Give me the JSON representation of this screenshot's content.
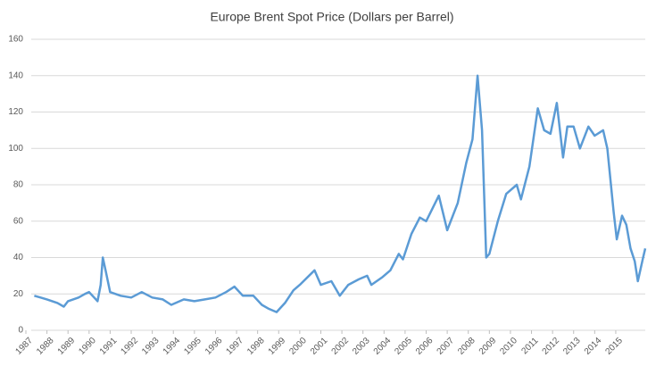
{
  "chart_data": {
    "type": "line",
    "title": "Europe Brent Spot Price (Dollars per Barrel)",
    "x": [
      1987.4,
      1987.7,
      1988.0,
      1988.5,
      1988.8,
      1989.0,
      1989.5,
      1989.8,
      1990.0,
      1990.4,
      1990.55,
      1990.65,
      1990.8,
      1991.0,
      1991.5,
      1992.0,
      1992.5,
      1993.0,
      1993.5,
      1993.9,
      1994.5,
      1995.0,
      1995.5,
      1996.0,
      1996.5,
      1996.9,
      1997.3,
      1997.8,
      1998.2,
      1998.5,
      1998.9,
      1999.3,
      1999.7,
      2000.0,
      2000.7,
      2001.0,
      2001.5,
      2001.9,
      2002.3,
      2002.8,
      2003.2,
      2003.4,
      2003.9,
      2004.3,
      2004.7,
      2004.9,
      2005.3,
      2005.7,
      2006.0,
      2006.6,
      2007.0,
      2007.5,
      2007.9,
      2008.2,
      2008.44,
      2008.65,
      2008.85,
      2009.0,
      2009.4,
      2009.8,
      2010.3,
      2010.5,
      2010.9,
      2011.3,
      2011.6,
      2011.9,
      2012.2,
      2012.5,
      2012.7,
      2013.0,
      2013.3,
      2013.7,
      2014.0,
      2014.4,
      2014.6,
      2014.9,
      2015.05,
      2015.3,
      2015.5,
      2015.7,
      2015.9,
      2016.05,
      2016.3,
      2016.4
    ],
    "values": [
      19,
      18,
      17,
      15,
      13,
      16,
      18,
      20,
      21,
      16,
      25,
      40,
      32,
      21,
      19,
      18,
      21,
      18,
      17,
      14,
      17,
      16,
      17,
      18,
      21,
      24,
      19,
      19,
      14,
      12,
      10,
      15,
      22,
      25,
      33,
      25,
      27,
      19,
      25,
      28,
      30,
      25,
      29,
      33,
      42,
      39,
      53,
      62,
      60,
      74,
      55,
      70,
      92,
      105,
      140,
      110,
      40,
      42,
      60,
      75,
      80,
      72,
      90,
      122,
      110,
      108,
      125,
      95,
      112,
      112,
      100,
      112,
      107,
      110,
      100,
      65,
      50,
      63,
      58,
      45,
      38,
      27,
      40,
      45
    ],
    "color": "#5b9bd5",
    "xlim": [
      1987,
      2016.4
    ],
    "xticks": [
      1987,
      1988,
      1989,
      1990,
      1991,
      1992,
      1993,
      1994,
      1995,
      1996,
      1997,
      1998,
      1999,
      2000,
      2001,
      2002,
      2003,
      2004,
      2005,
      2006,
      2007,
      2008,
      2009,
      2010,
      2011,
      2012,
      2013,
      2014,
      2015
    ],
    "ylim": [
      0,
      160
    ],
    "yticks": [
      0,
      20,
      40,
      60,
      80,
      100,
      120,
      140,
      160
    ],
    "grid": true
  }
}
